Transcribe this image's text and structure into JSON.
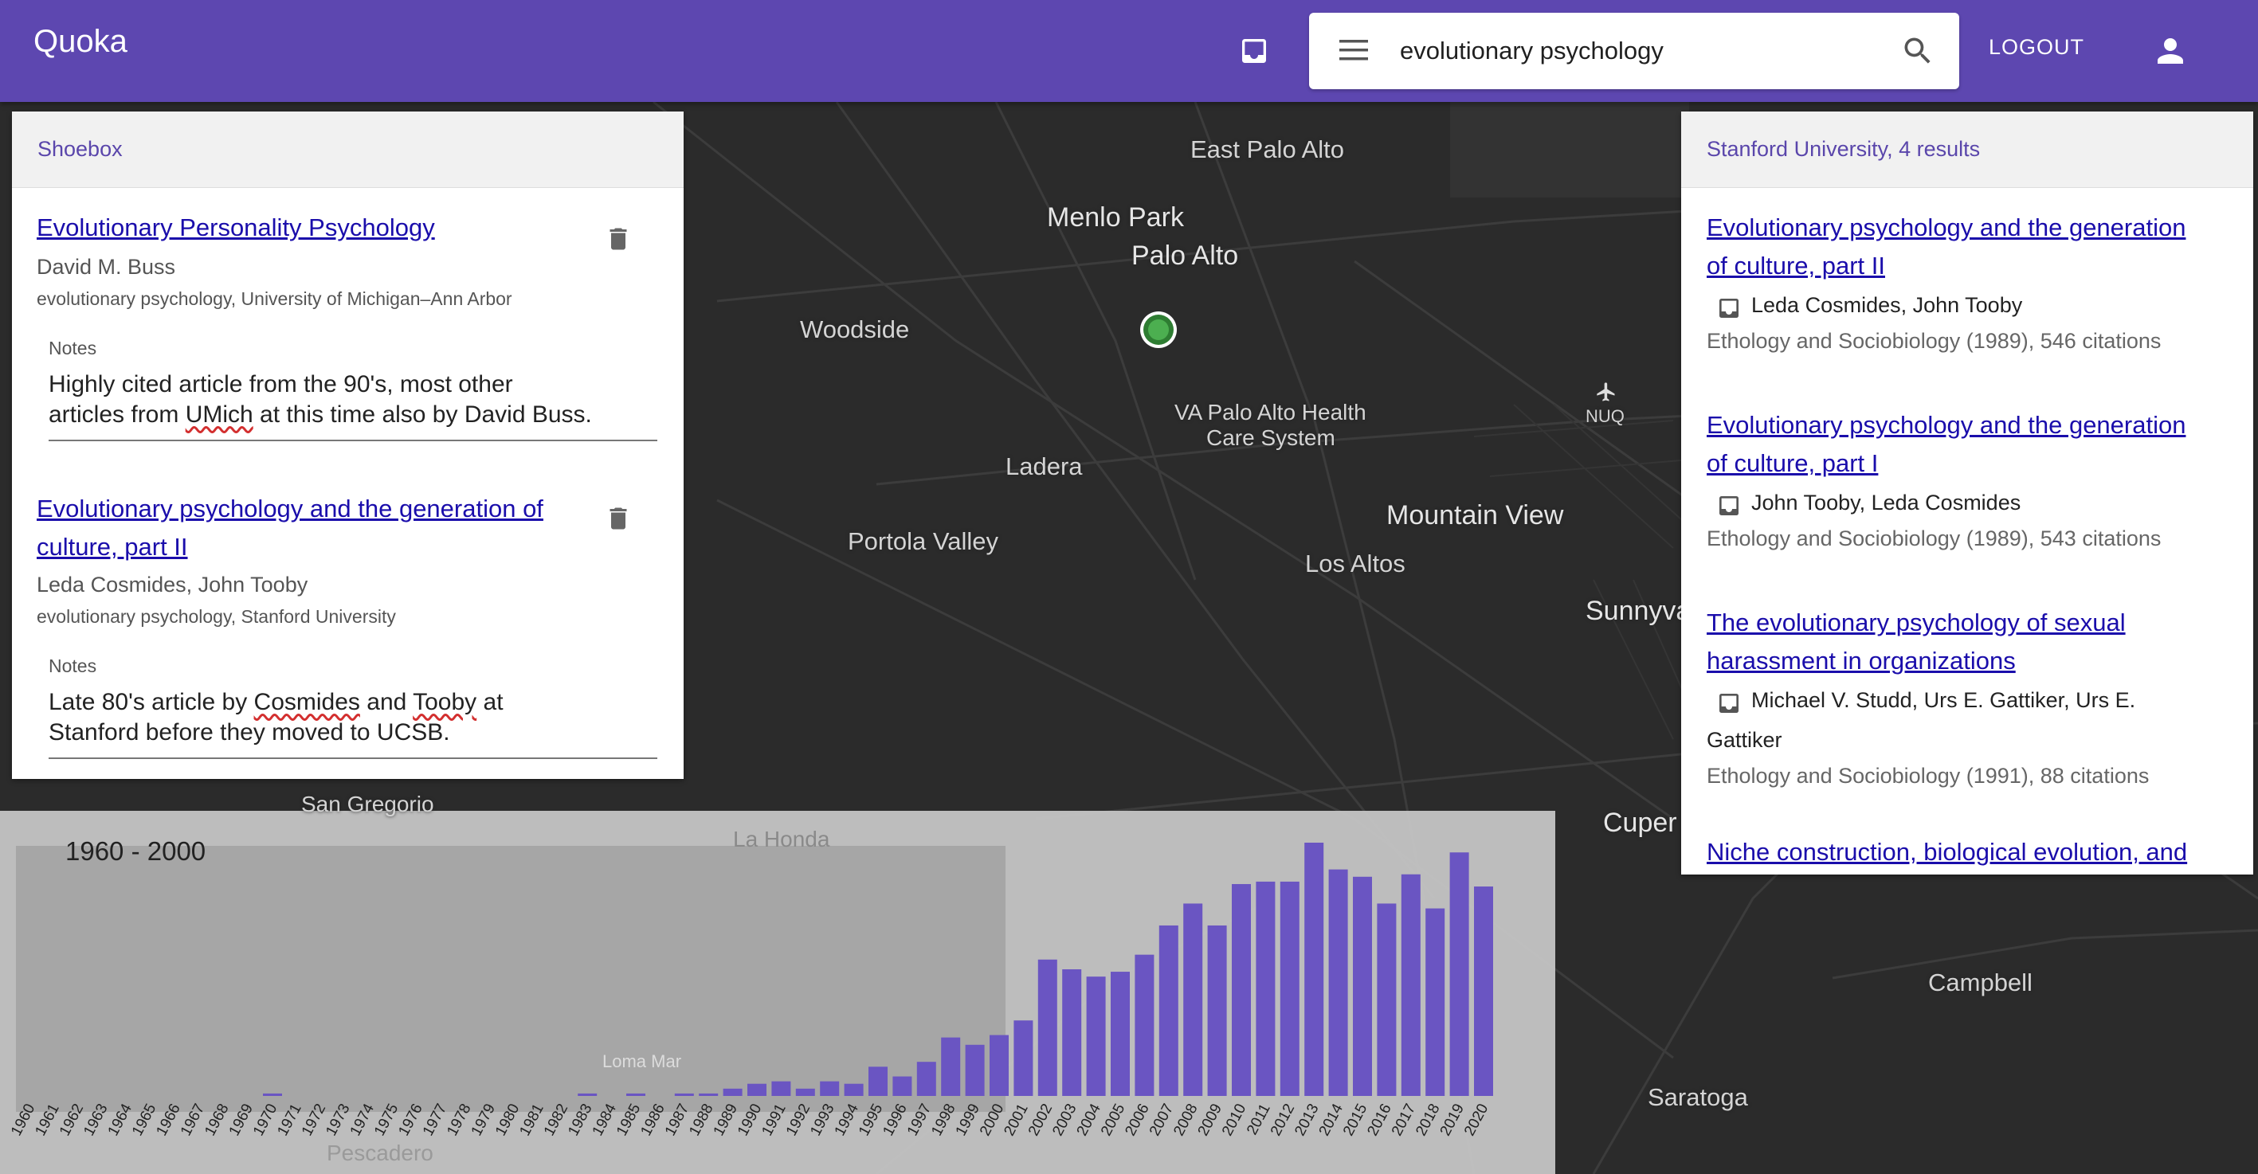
{
  "app": {
    "title": "Quoka"
  },
  "header": {
    "search_value": "evolutionary psychology",
    "logout_label": "LOGOUT"
  },
  "map": {
    "places": [
      {
        "name": "East Palo Alto",
        "size": "md"
      },
      {
        "name": "Menlo Park",
        "size": "lg"
      },
      {
        "name": "Palo Alto",
        "size": "lg"
      },
      {
        "name": "Woodside",
        "size": "md"
      },
      {
        "name": "VA Palo Alto Health",
        "size": "sm"
      },
      {
        "name": "Care System",
        "size": "sm"
      },
      {
        "name": "NUQ",
        "size": "sm"
      },
      {
        "name": "Ladera",
        "size": "md"
      },
      {
        "name": "Mountain View",
        "size": "lg"
      },
      {
        "name": "Portola Valley",
        "size": "md"
      },
      {
        "name": "Los Altos",
        "size": "md"
      },
      {
        "name": "Sunnyva",
        "size": "lg"
      },
      {
        "name": "Cuper",
        "size": "lg"
      },
      {
        "name": "Campbell",
        "size": "md"
      },
      {
        "name": "Saratoga",
        "size": "md"
      },
      {
        "name": "San Gregorio",
        "size": "sm"
      },
      {
        "name": "La Honda",
        "size": "sm"
      },
      {
        "name": "Loma Mar",
        "size": "sm"
      },
      {
        "name": "Pescadero",
        "size": "sm"
      }
    ]
  },
  "shoebox": {
    "title": "Shoebox",
    "notes_label": "Notes",
    "items": [
      {
        "title": "Evolutionary Personality Psychology",
        "authors": "David M. Buss",
        "meta": "evolutionary psychology, University of Michigan–Ann Arbor",
        "notes_line1": "Highly cited article from the 90's, most other",
        "notes_line2_pre": "articles from ",
        "notes_line2_flag": "UMich",
        "notes_line2_post": " at this time also by David Buss."
      },
      {
        "title_line1": "Evolutionary psychology and the generation of",
        "title_line2": "culture, part II",
        "authors": "Leda Cosmides, John Tooby",
        "meta": "evolutionary psychology, Stanford University",
        "notes_line1_pre": "Late 80's article by ",
        "notes_line1_flag1": "Cosmides",
        "notes_line1_mid": " and ",
        "notes_line1_flag2": "Tooby",
        "notes_line1_post": " at",
        "notes_line2": "Stanford before they moved to UCSB."
      }
    ]
  },
  "results": {
    "header": "Stanford University, 4 results",
    "items": [
      {
        "title_line1": "Evolutionary psychology and the generation",
        "title_line2": "of culture, part II",
        "authors": "Leda Cosmides, John Tooby",
        "meta": "Ethology and Sociobiology (1989), 546 citations"
      },
      {
        "title_line1": "Evolutionary psychology and the generation",
        "title_line2": "of culture, part I",
        "authors": "John Tooby, Leda Cosmides",
        "meta": "Ethology and Sociobiology (1989), 543 citations"
      },
      {
        "title_line1": "The evolutionary psychology of sexual",
        "title_line2": "harassment in organizations",
        "authors": "Michael V. Studd, Urs E. Gattiker, Urs E.",
        "authors_line2": "Gattiker",
        "meta": "Ethology and Sociobiology (1991), 88 citations"
      },
      {
        "title_line1": "Niche construction, biological evolution, and"
      }
    ]
  },
  "colors": {
    "accent": "#5d47b0",
    "bar": "#6a55c2",
    "link": "#1a0dab"
  },
  "chart_data": {
    "type": "bar",
    "title": "",
    "selected_range_label": "1960 - 2000",
    "brush_range": [
      1960,
      2000
    ],
    "categories": [
      "1960",
      "1961",
      "1962",
      "1963",
      "1964",
      "1965",
      "1966",
      "1967",
      "1968",
      "1969",
      "1970",
      "1971",
      "1972",
      "1973",
      "1974",
      "1975",
      "1976",
      "1977",
      "1978",
      "1979",
      "1980",
      "1981",
      "1982",
      "1983",
      "1984",
      "1985",
      "1986",
      "1987",
      "1988",
      "1989",
      "1990",
      "1991",
      "1992",
      "1993",
      "1994",
      "1995",
      "1996",
      "1997",
      "1998",
      "1999",
      "2000",
      "2001",
      "2002",
      "2003",
      "2004",
      "2005",
      "2006",
      "2007",
      "2008",
      "2009",
      "2010",
      "2011",
      "2012",
      "2013",
      "2014",
      "2015",
      "2016",
      "2017",
      "2018",
      "2019",
      "2020"
    ],
    "values": [
      0,
      0,
      0,
      0,
      0,
      0,
      0,
      0,
      0,
      0,
      1,
      0,
      0,
      0,
      0,
      0,
      0,
      0,
      0,
      0,
      0,
      0,
      0,
      1,
      0,
      1,
      0,
      1,
      1,
      3,
      5,
      6,
      3,
      6,
      5,
      12,
      8,
      14,
      24,
      21,
      25,
      31,
      56,
      52,
      49,
      51,
      58,
      70,
      79,
      70,
      87,
      88,
      88,
      104,
      93,
      90,
      79,
      91,
      77,
      100,
      86
    ]
  }
}
